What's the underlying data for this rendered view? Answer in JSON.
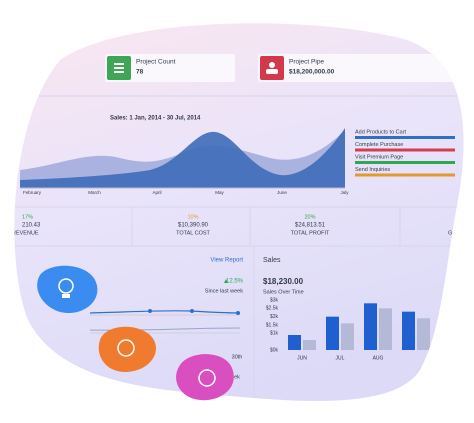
{
  "cards": [
    {
      "title": "Project Count",
      "value": "78"
    },
    {
      "title": "Project Pipe",
      "value": "$18,200,000.00"
    }
  ],
  "area_chart": {
    "title": "Sales: 1 Jan, 2014 - 30 Jul, 2014",
    "months": [
      "February",
      "March",
      "April",
      "May",
      "June",
      "July"
    ],
    "legend": [
      {
        "name": "Add Products to Cart",
        "color": "#2f6fc8"
      },
      {
        "name": "Complete Purchase",
        "color": "#d1404f"
      },
      {
        "name": "Visit Premium Page",
        "color": "#2fa84f"
      },
      {
        "name": "Send Inquiries",
        "color": "#e39a2a"
      }
    ]
  },
  "kpis": [
    {
      "change": "17%",
      "value": "210.43",
      "label": "REVENUE"
    },
    {
      "change": "10%",
      "value": "$10,390.90",
      "label": "TOTAL COST"
    },
    {
      "change": "20%",
      "value": "$24,813.51",
      "label": "TOTAL PROFIT"
    },
    {
      "label": "GOA"
    }
  ],
  "weekly": {
    "link": "View Report",
    "change": "12.5%",
    "note": "Since last week",
    "x_label": "30th",
    "legend": "ek"
  },
  "sales_chart": {
    "title": "Sales",
    "total": "$18,230.00",
    "subtitle": "Sales Over Time",
    "ylim": [
      0,
      3
    ],
    "yticks": [
      {
        "value": 0,
        "label": "$0k"
      },
      {
        "value": 1,
        "label": "$1k"
      },
      {
        "value": 1.5,
        "label": "$1.5k"
      },
      {
        "value": 2,
        "label": "$2k"
      },
      {
        "value": 2.5,
        "label": "$2.5k"
      },
      {
        "value": 3,
        "label": "$3k"
      }
    ],
    "categories": [
      "JUN",
      "JUL",
      "AUG",
      null
    ],
    "series": [
      {
        "color": "#1f5fd0",
        "values": [
          0.9,
          2.0,
          2.8,
          2.3
        ]
      },
      {
        "color": "#b3b9d6",
        "values": [
          0.6,
          1.6,
          2.5,
          1.9
        ]
      }
    ]
  }
}
